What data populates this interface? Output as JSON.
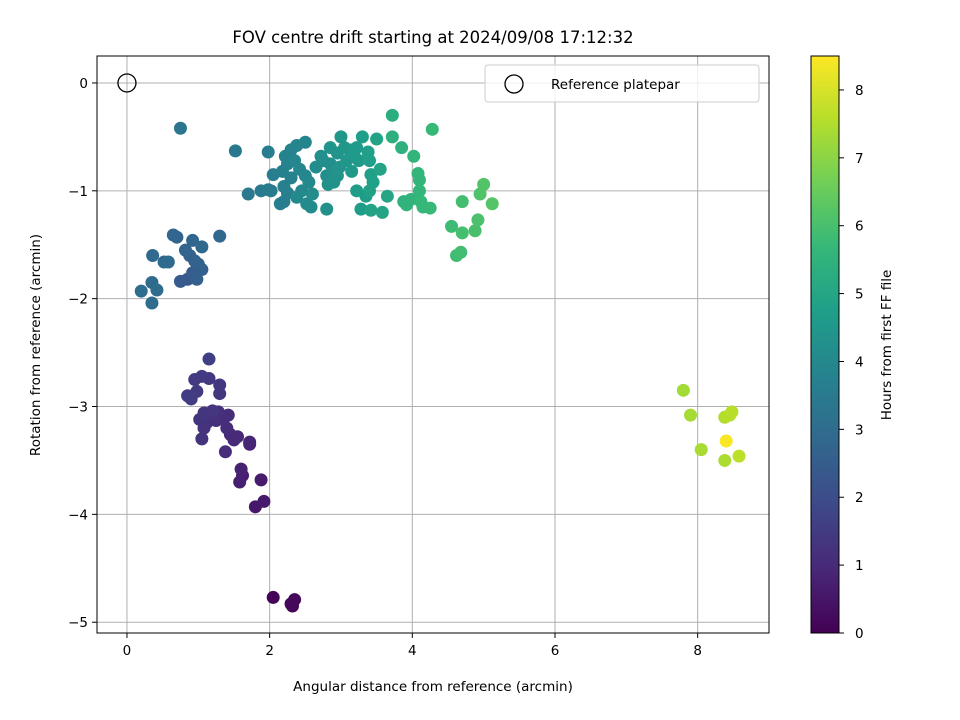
{
  "chart_data": {
    "type": "scatter",
    "title": "FOV centre drift starting at 2024/09/08 17:12:32",
    "xlabel": "Angular distance from reference (arcmin)",
    "ylabel": "Rotation from reference (arcmin)",
    "xlim": [
      -0.42,
      9.0
    ],
    "ylim": [
      -5.1,
      0.25
    ],
    "xticks": [
      0,
      2,
      4,
      6,
      8
    ],
    "yticks": [
      0,
      -1,
      -2,
      -3,
      -4,
      -5
    ],
    "xtick_labels": [
      "0",
      "2",
      "4",
      "6",
      "8"
    ],
    "ytick_labels": [
      "0",
      "−1",
      "−2",
      "−3",
      "−4",
      "−5"
    ],
    "grid": true,
    "colormap": "viridis",
    "colorbar": {
      "label": "Hours from first FF file",
      "range": [
        0,
        8.5
      ],
      "ticks": [
        0,
        1,
        2,
        3,
        4,
        5,
        6,
        7,
        8
      ],
      "tick_labels": [
        "0",
        "1",
        "2",
        "3",
        "4",
        "5",
        "6",
        "7",
        "8"
      ]
    },
    "reference": {
      "label": "Reference platepar",
      "x": 0,
      "y": 0
    },
    "legend": {
      "position": "top-right",
      "entries": [
        "Reference platepar"
      ]
    },
    "points": [
      {
        "x": 2.05,
        "y": -4.77,
        "c": 0.05
      },
      {
        "x": 2.32,
        "y": -4.85,
        "c": 0.1
      },
      {
        "x": 2.35,
        "y": -4.79,
        "c": 0.15
      },
      {
        "x": 2.3,
        "y": -4.83,
        "c": 0.2
      },
      {
        "x": 1.8,
        "y": -3.93,
        "c": 0.55
      },
      {
        "x": 1.92,
        "y": -3.88,
        "c": 0.6
      },
      {
        "x": 1.88,
        "y": -3.68,
        "c": 0.65
      },
      {
        "x": 1.62,
        "y": -3.64,
        "c": 0.7
      },
      {
        "x": 1.58,
        "y": -3.7,
        "c": 0.75
      },
      {
        "x": 1.6,
        "y": -3.58,
        "c": 0.8
      },
      {
        "x": 1.72,
        "y": -3.35,
        "c": 0.85
      },
      {
        "x": 1.72,
        "y": -3.33,
        "c": 0.9
      },
      {
        "x": 1.55,
        "y": -3.28,
        "c": 0.95
      },
      {
        "x": 1.45,
        "y": -3.26,
        "c": 1.0
      },
      {
        "x": 1.5,
        "y": -3.31,
        "c": 1.02
      },
      {
        "x": 1.4,
        "y": -3.2,
        "c": 1.05
      },
      {
        "x": 1.38,
        "y": -3.42,
        "c": 1.08
      },
      {
        "x": 1.42,
        "y": -3.08,
        "c": 1.1
      },
      {
        "x": 1.35,
        "y": -3.12,
        "c": 1.12
      },
      {
        "x": 1.28,
        "y": -3.05,
        "c": 1.15
      },
      {
        "x": 1.25,
        "y": -3.13,
        "c": 1.18
      },
      {
        "x": 1.18,
        "y": -3.1,
        "c": 1.2
      },
      {
        "x": 1.12,
        "y": -3.15,
        "c": 1.22
      },
      {
        "x": 1.08,
        "y": -3.2,
        "c": 1.25
      },
      {
        "x": 1.05,
        "y": -3.3,
        "c": 1.28
      },
      {
        "x": 1.02,
        "y": -3.12,
        "c": 1.3
      },
      {
        "x": 1.08,
        "y": -3.06,
        "c": 1.32
      },
      {
        "x": 1.2,
        "y": -3.04,
        "c": 1.35
      },
      {
        "x": 1.3,
        "y": -2.88,
        "c": 1.38
      },
      {
        "x": 1.3,
        "y": -2.8,
        "c": 1.4
      },
      {
        "x": 1.15,
        "y": -2.74,
        "c": 1.42
      },
      {
        "x": 1.05,
        "y": -2.72,
        "c": 1.45
      },
      {
        "x": 0.95,
        "y": -2.75,
        "c": 1.48
      },
      {
        "x": 0.98,
        "y": -2.86,
        "c": 1.5
      },
      {
        "x": 0.85,
        "y": -2.9,
        "c": 1.52
      },
      {
        "x": 0.9,
        "y": -2.93,
        "c": 1.55
      },
      {
        "x": 1.15,
        "y": -2.56,
        "c": 1.6
      },
      {
        "x": 0.85,
        "y": -1.82,
        "c": 2.4
      },
      {
        "x": 0.75,
        "y": -1.84,
        "c": 2.45
      },
      {
        "x": 0.92,
        "y": -1.76,
        "c": 2.5
      },
      {
        "x": 0.98,
        "y": -1.82,
        "c": 2.55
      },
      {
        "x": 1.05,
        "y": -1.73,
        "c": 2.6
      },
      {
        "x": 0.88,
        "y": -1.6,
        "c": 2.62
      },
      {
        "x": 0.95,
        "y": -1.65,
        "c": 2.65
      },
      {
        "x": 1.0,
        "y": -1.68,
        "c": 2.68
      },
      {
        "x": 0.82,
        "y": -1.55,
        "c": 2.7
      },
      {
        "x": 0.7,
        "y": -1.43,
        "c": 2.75
      },
      {
        "x": 0.65,
        "y": -1.41,
        "c": 2.78
      },
      {
        "x": 0.92,
        "y": -1.46,
        "c": 2.8
      },
      {
        "x": 1.05,
        "y": -1.52,
        "c": 2.82
      },
      {
        "x": 1.3,
        "y": -1.42,
        "c": 2.85
      },
      {
        "x": 0.52,
        "y": -1.66,
        "c": 2.88
      },
      {
        "x": 0.58,
        "y": -1.66,
        "c": 2.9
      },
      {
        "x": 0.36,
        "y": -1.6,
        "c": 2.92
      },
      {
        "x": 0.35,
        "y": -1.85,
        "c": 2.95
      },
      {
        "x": 0.42,
        "y": -1.92,
        "c": 2.98
      },
      {
        "x": 0.2,
        "y": -1.93,
        "c": 3.0
      },
      {
        "x": 0.35,
        "y": -2.04,
        "c": 3.02
      },
      {
        "x": 0.75,
        "y": -0.42,
        "c": 3.3
      },
      {
        "x": 1.52,
        "y": -0.63,
        "c": 3.4
      },
      {
        "x": 1.7,
        "y": -1.03,
        "c": 3.45
      },
      {
        "x": 1.88,
        "y": -1.0,
        "c": 3.5
      },
      {
        "x": 1.98,
        "y": -0.99,
        "c": 3.52
      },
      {
        "x": 2.02,
        "y": -1.0,
        "c": 3.55
      },
      {
        "x": 1.98,
        "y": -0.64,
        "c": 3.58
      },
      {
        "x": 2.05,
        "y": -0.85,
        "c": 3.6
      },
      {
        "x": 2.2,
        "y": -1.1,
        "c": 3.62
      },
      {
        "x": 2.15,
        "y": -1.12,
        "c": 3.65
      },
      {
        "x": 2.25,
        "y": -1.02,
        "c": 3.68
      },
      {
        "x": 2.2,
        "y": -0.96,
        "c": 3.7
      },
      {
        "x": 2.3,
        "y": -0.88,
        "c": 3.72
      },
      {
        "x": 2.18,
        "y": -0.82,
        "c": 3.75
      },
      {
        "x": 2.25,
        "y": -0.75,
        "c": 3.78
      },
      {
        "x": 2.22,
        "y": -0.68,
        "c": 3.8
      },
      {
        "x": 2.3,
        "y": -0.62,
        "c": 3.82
      },
      {
        "x": 2.38,
        "y": -0.58,
        "c": 3.85
      },
      {
        "x": 2.5,
        "y": -0.55,
        "c": 3.88
      },
      {
        "x": 2.35,
        "y": -0.72,
        "c": 3.9
      },
      {
        "x": 2.42,
        "y": -0.8,
        "c": 3.92
      },
      {
        "x": 2.5,
        "y": -0.86,
        "c": 3.95
      },
      {
        "x": 2.55,
        "y": -0.92,
        "c": 3.98
      },
      {
        "x": 2.45,
        "y": -1.0,
        "c": 4.0
      },
      {
        "x": 2.38,
        "y": -1.06,
        "c": 4.02
      },
      {
        "x": 2.52,
        "y": -1.12,
        "c": 4.05
      },
      {
        "x": 2.58,
        "y": -1.15,
        "c": 4.08
      },
      {
        "x": 2.6,
        "y": -1.03,
        "c": 4.1
      },
      {
        "x": 2.65,
        "y": -0.78,
        "c": 4.12
      },
      {
        "x": 2.75,
        "y": -0.72,
        "c": 4.15
      },
      {
        "x": 2.8,
        "y": -0.86,
        "c": 4.18
      },
      {
        "x": 2.72,
        "y": -0.68,
        "c": 4.2
      },
      {
        "x": 2.85,
        "y": -0.75,
        "c": 4.22
      },
      {
        "x": 2.88,
        "y": -0.82,
        "c": 4.25
      },
      {
        "x": 2.82,
        "y": -0.94,
        "c": 4.28
      },
      {
        "x": 2.8,
        "y": -1.17,
        "c": 4.3
      },
      {
        "x": 2.9,
        "y": -0.92,
        "c": 4.32
      },
      {
        "x": 2.95,
        "y": -0.86,
        "c": 4.35
      },
      {
        "x": 2.98,
        "y": -0.78,
        "c": 4.38
      },
      {
        "x": 2.85,
        "y": -0.6,
        "c": 4.4
      },
      {
        "x": 2.95,
        "y": -0.65,
        "c": 4.42
      },
      {
        "x": 3.05,
        "y": -0.6,
        "c": 4.45
      },
      {
        "x": 3.0,
        "y": -0.5,
        "c": 4.48
      },
      {
        "x": 3.08,
        "y": -0.72,
        "c": 4.5
      },
      {
        "x": 3.12,
        "y": -0.62,
        "c": 4.52
      },
      {
        "x": 3.15,
        "y": -0.82,
        "c": 4.55
      },
      {
        "x": 3.18,
        "y": -0.66,
        "c": 4.58
      },
      {
        "x": 3.22,
        "y": -0.6,
        "c": 4.6
      },
      {
        "x": 3.25,
        "y": -0.72,
        "c": 4.62
      },
      {
        "x": 3.22,
        "y": -1.0,
        "c": 4.65
      },
      {
        "x": 3.28,
        "y": -1.17,
        "c": 4.68
      },
      {
        "x": 3.35,
        "y": -1.05,
        "c": 4.7
      },
      {
        "x": 3.3,
        "y": -0.5,
        "c": 4.72
      },
      {
        "x": 3.38,
        "y": -0.64,
        "c": 4.75
      },
      {
        "x": 3.4,
        "y": -0.72,
        "c": 4.78
      },
      {
        "x": 3.42,
        "y": -0.85,
        "c": 4.8
      },
      {
        "x": 3.45,
        "y": -0.92,
        "c": 4.82
      },
      {
        "x": 3.4,
        "y": -1.0,
        "c": 4.85
      },
      {
        "x": 3.42,
        "y": -1.18,
        "c": 4.88
      },
      {
        "x": 3.5,
        "y": -0.52,
        "c": 4.9
      },
      {
        "x": 3.55,
        "y": -0.8,
        "c": 4.92
      },
      {
        "x": 3.58,
        "y": -1.2,
        "c": 4.95
      },
      {
        "x": 3.65,
        "y": -1.05,
        "c": 4.98
      },
      {
        "x": 3.72,
        "y": -0.3,
        "c": 5.3
      },
      {
        "x": 3.72,
        "y": -0.5,
        "c": 5.35
      },
      {
        "x": 3.85,
        "y": -0.6,
        "c": 5.4
      },
      {
        "x": 3.88,
        "y": -1.1,
        "c": 5.45
      },
      {
        "x": 3.92,
        "y": -1.13,
        "c": 5.5
      },
      {
        "x": 3.98,
        "y": -1.08,
        "c": 5.52
      },
      {
        "x": 4.02,
        "y": -0.68,
        "c": 5.55
      },
      {
        "x": 4.08,
        "y": -0.84,
        "c": 5.58
      },
      {
        "x": 4.1,
        "y": -0.9,
        "c": 5.6
      },
      {
        "x": 4.1,
        "y": -1.0,
        "c": 5.62
      },
      {
        "x": 4.12,
        "y": -1.1,
        "c": 5.65
      },
      {
        "x": 4.15,
        "y": -1.15,
        "c": 5.68
      },
      {
        "x": 4.25,
        "y": -1.16,
        "c": 5.7
      },
      {
        "x": 4.28,
        "y": -0.43,
        "c": 5.72
      },
      {
        "x": 4.55,
        "y": -1.33,
        "c": 5.8
      },
      {
        "x": 4.62,
        "y": -1.6,
        "c": 5.85
      },
      {
        "x": 4.68,
        "y": -1.57,
        "c": 5.9
      },
      {
        "x": 4.7,
        "y": -1.1,
        "c": 5.92
      },
      {
        "x": 4.7,
        "y": -1.39,
        "c": 5.95
      },
      {
        "x": 4.88,
        "y": -1.37,
        "c": 6.0
      },
      {
        "x": 4.92,
        "y": -1.27,
        "c": 6.05
      },
      {
        "x": 4.95,
        "y": -1.03,
        "c": 6.1
      },
      {
        "x": 5.0,
        "y": -0.94,
        "c": 6.15
      },
      {
        "x": 5.12,
        "y": -1.12,
        "c": 6.2
      },
      {
        "x": 7.8,
        "y": -2.85,
        "c": 7.3
      },
      {
        "x": 7.9,
        "y": -3.08,
        "c": 7.35
      },
      {
        "x": 8.05,
        "y": -3.4,
        "c": 7.4
      },
      {
        "x": 8.38,
        "y": -3.5,
        "c": 7.45
      },
      {
        "x": 8.38,
        "y": -3.1,
        "c": 7.5
      },
      {
        "x": 8.45,
        "y": -3.08,
        "c": 7.55
      },
      {
        "x": 8.48,
        "y": -3.05,
        "c": 7.6
      },
      {
        "x": 8.58,
        "y": -3.46,
        "c": 7.65
      },
      {
        "x": 8.4,
        "y": -3.32,
        "c": 8.45
      }
    ]
  }
}
